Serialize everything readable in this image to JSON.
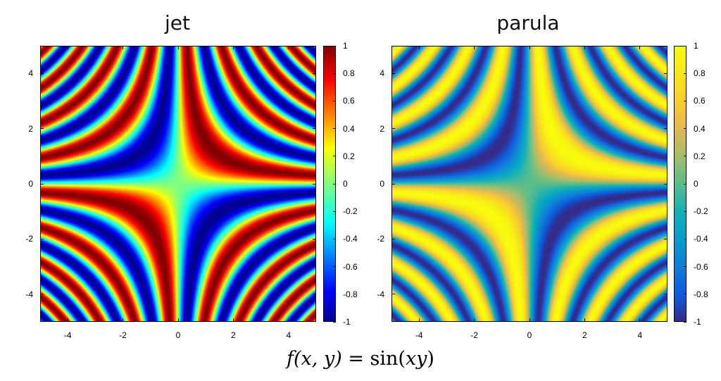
{
  "chart_data": [
    {
      "type": "heatmap",
      "title": "jet",
      "colormap": "jet",
      "function": "sin(xy)",
      "xlim": [
        -5,
        5
      ],
      "ylim": [
        -5,
        5
      ],
      "clim": [
        -1,
        1
      ],
      "xticks": [
        -4,
        -2,
        0,
        2,
        4
      ],
      "yticks": [
        -4,
        -2,
        0,
        2,
        4
      ],
      "xtick_labels": [
        "-4",
        "-2",
        "0",
        "2",
        "4"
      ],
      "ytick_labels": [
        "-4",
        "-2",
        "0",
        "2",
        "4"
      ],
      "colorbar_ticks": [
        -1,
        -0.8,
        -0.6,
        -0.4,
        -0.2,
        0,
        0.2,
        0.4,
        0.6,
        0.8,
        1
      ],
      "colorbar_labels": [
        "-1",
        "-0.8",
        "-0.6",
        "-0.4",
        "-0.2",
        "0",
        "0.2",
        "0.4",
        "0.6",
        "0.8",
        "1"
      ],
      "grid": false
    },
    {
      "type": "heatmap",
      "title": "parula",
      "colormap": "parula",
      "function": "sin(xy)",
      "xlim": [
        -5,
        5
      ],
      "ylim": [
        -5,
        5
      ],
      "clim": [
        -1,
        1
      ],
      "xticks": [
        -4,
        -2,
        0,
        2,
        4
      ],
      "yticks": [
        -4,
        -2,
        0,
        2,
        4
      ],
      "xtick_labels": [
        "-4",
        "-2",
        "0",
        "2",
        "4"
      ],
      "ytick_labels": [
        "-4",
        "-2",
        "0",
        "2",
        "4"
      ],
      "colorbar_ticks": [
        -1,
        -0.8,
        -0.6,
        -0.4,
        -0.2,
        0,
        0.2,
        0.4,
        0.6,
        0.8,
        1
      ],
      "colorbar_labels": [
        "-1",
        "-0.8",
        "-0.6",
        "-0.4",
        "-0.2",
        "0",
        "0.2",
        "0.4",
        "0.6",
        "0.8",
        "1"
      ],
      "grid": false
    }
  ],
  "formula": {
    "f": "f",
    "args": "(x, y)",
    "eq": " = sin(",
    "xy": "xy",
    "close": ")"
  }
}
